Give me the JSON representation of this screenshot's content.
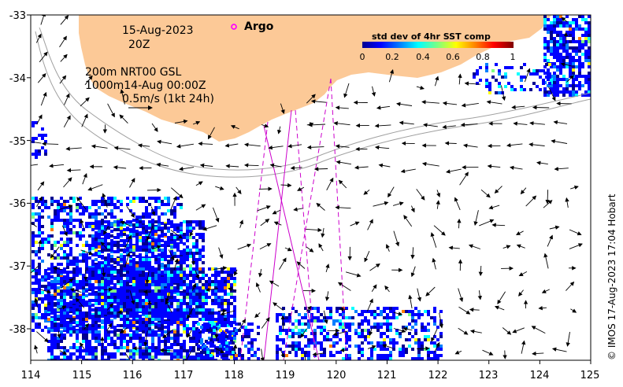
{
  "map": {
    "date": "15-Aug-2023",
    "hour": "20Z",
    "legend_argo": "Argo",
    "isobath_line": "200m  NRT00 GSL",
    "isobath_line2": "1000m14-Aug 00:00Z",
    "velocity_scale": "0.5m/s (1kt 24h)",
    "credit": "© IMOS 17-Aug-2023 17:04 Hobart",
    "colors": {
      "land": "#fcc997",
      "argo_marker": "#ff00ff",
      "altimeter_track": "#cc00cc",
      "isobath": "#a0a0a0"
    }
  },
  "colorbar": {
    "title": "std dev of 4hr SST comp",
    "ticks": [
      "0",
      "0.2",
      "0.4",
      "0.6",
      "0.8",
      "1"
    ],
    "colormap": [
      "#00008f",
      "#0000ff",
      "#007fff",
      "#00ffff",
      "#7fff7f",
      "#ffff00",
      "#ff7f00",
      "#ff0000",
      "#7f0000"
    ]
  },
  "axes": {
    "x_ticks": [
      "114",
      "115",
      "116",
      "117",
      "118",
      "119",
      "120",
      "121",
      "122",
      "123",
      "124",
      "125"
    ],
    "y_ticks": [
      "-33",
      "-34",
      "-35",
      "-36",
      "-37",
      "-38"
    ],
    "xlim": [
      114,
      125
    ],
    "ylim": [
      -38.5,
      -33
    ]
  }
}
